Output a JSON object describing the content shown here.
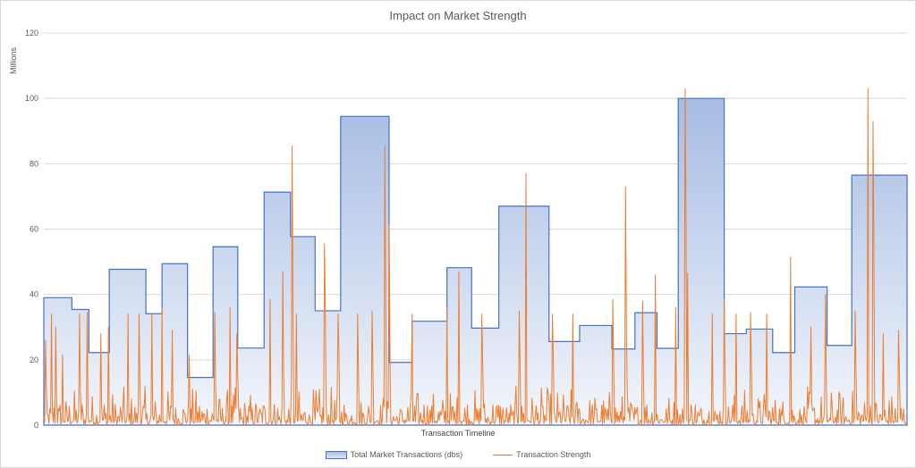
{
  "chart_data": {
    "type": "area",
    "title": "Impact on Market Strength",
    "ylabel": "Millions",
    "xlabel": "Transaction Timeline",
    "ylim": [
      0,
      120
    ],
    "yticks": [
      0,
      20,
      40,
      60,
      80,
      100,
      120
    ],
    "grid": true,
    "legend_position": "bottom",
    "colors": {
      "area_fill_top": "#a6bce3",
      "area_fill_bottom": "#f3f6fc",
      "area_stroke": "#4472c4",
      "line": "#ed7d31",
      "grid": "#d9d9d9"
    },
    "series": [
      {
        "name": "Total Market Transactions (dbs)",
        "type": "step-area",
        "steps": [
          [
            0,
            39
          ],
          [
            33,
            35.4
          ],
          [
            53,
            22.2
          ],
          [
            77,
            47.7
          ],
          [
            120,
            34.1
          ],
          [
            139,
            49.4
          ],
          [
            169,
            14.6
          ],
          [
            199,
            54.6
          ],
          [
            228,
            23.6
          ],
          [
            259,
            71.3
          ],
          [
            290,
            57.7
          ],
          [
            319,
            35
          ],
          [
            349,
            94.5
          ],
          [
            406,
            19.2
          ],
          [
            433,
            31.8
          ],
          [
            474,
            48.2
          ],
          [
            503,
            29.7
          ],
          [
            535,
            67
          ],
          [
            594,
            25.6
          ],
          [
            630,
            30.5
          ],
          [
            668,
            23.3
          ],
          [
            695,
            34.4
          ],
          [
            721,
            23.5
          ],
          [
            746,
            100
          ],
          [
            800,
            28
          ],
          [
            826,
            29.4
          ],
          [
            857,
            22.2
          ],
          [
            883,
            42.3
          ],
          [
            921,
            24.4
          ],
          [
            950,
            76.5
          ]
        ],
        "x_end": 1015
      },
      {
        "name": "Transaction Strength",
        "type": "line",
        "n_points": 1016,
        "peaks": [
          [
            2,
            26
          ],
          [
            9,
            34
          ],
          [
            14,
            30
          ],
          [
            22,
            21.5
          ],
          [
            42,
            34
          ],
          [
            51,
            34.5
          ],
          [
            67,
            28
          ],
          [
            76,
            30
          ],
          [
            99,
            34
          ],
          [
            112,
            34
          ],
          [
            127,
            34
          ],
          [
            139,
            36
          ],
          [
            151,
            29
          ],
          [
            171,
            21.5
          ],
          [
            201,
            34.5
          ],
          [
            219,
            36
          ],
          [
            227,
            28
          ],
          [
            266,
            38.5
          ],
          [
            281,
            47
          ],
          [
            292,
            85.5
          ],
          [
            297,
            34
          ],
          [
            330,
            55.5
          ],
          [
            346,
            34
          ],
          [
            369,
            34
          ],
          [
            386,
            35
          ],
          [
            401,
            85.5
          ],
          [
            406,
            61.5
          ],
          [
            433,
            34
          ],
          [
            474,
            36
          ],
          [
            488,
            47
          ],
          [
            515,
            34
          ],
          [
            559,
            35
          ],
          [
            567,
            77
          ],
          [
            598,
            34
          ],
          [
            622,
            34
          ],
          [
            669,
            38.5
          ],
          [
            684,
            73
          ],
          [
            704,
            38
          ],
          [
            719,
            46
          ],
          [
            743,
            36
          ],
          [
            754,
            103
          ],
          [
            757,
            46.5
          ],
          [
            786,
            34
          ],
          [
            800,
            38.5
          ],
          [
            814,
            34
          ],
          [
            831,
            34.5
          ],
          [
            850,
            34
          ],
          [
            878,
            51.5
          ],
          [
            902,
            30
          ],
          [
            919,
            40
          ],
          [
            954,
            35
          ],
          [
            969,
            103
          ],
          [
            975,
            93
          ],
          [
            987,
            28
          ],
          [
            1005,
            29
          ]
        ]
      }
    ]
  }
}
